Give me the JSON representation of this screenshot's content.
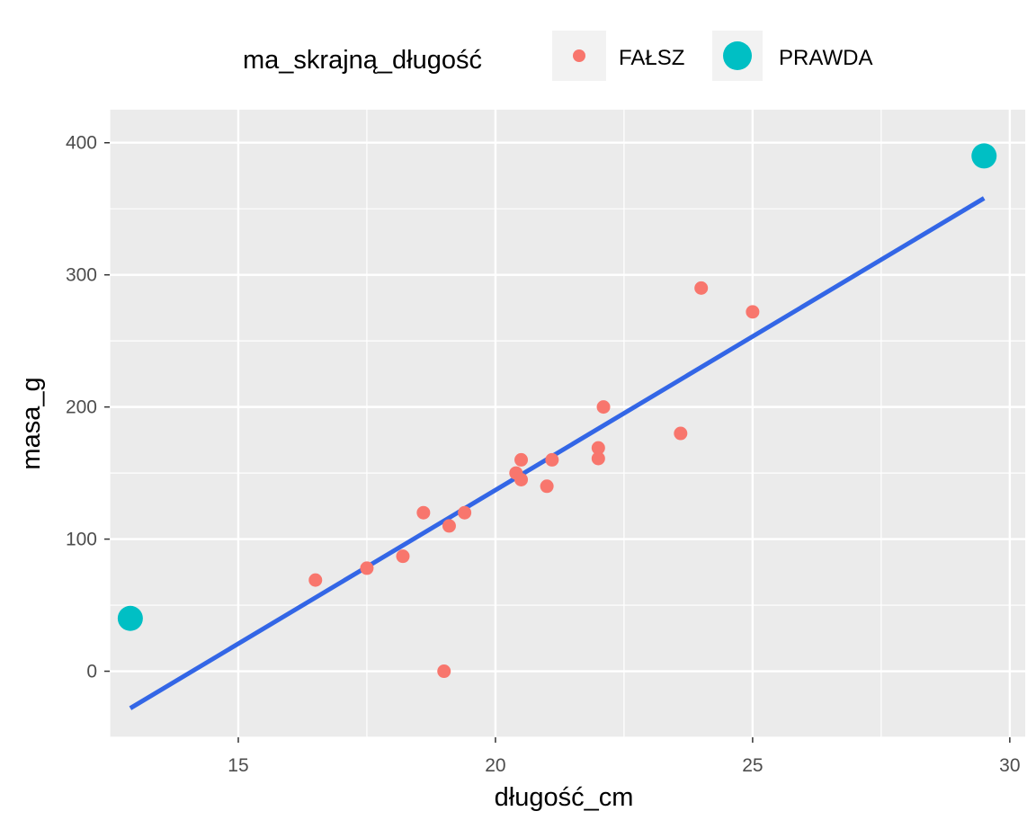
{
  "chart_data": {
    "type": "scatter",
    "xlabel": "długość_cm",
    "ylabel": "masa_g",
    "xlim": [
      12.5,
      30.3
    ],
    "ylim": [
      -50,
      425
    ],
    "x_ticks": [
      15,
      20,
      25,
      30
    ],
    "y_ticks": [
      0,
      100,
      200,
      300,
      400
    ],
    "x_tick_labels": [
      "15",
      "20",
      "25",
      "30"
    ],
    "y_tick_labels": [
      "0",
      "100",
      "200",
      "300",
      "400"
    ],
    "grid": true,
    "legend": {
      "title": "ma_skrajną_długość",
      "position": "top",
      "entries": [
        {
          "label": "FAŁSZ",
          "color": "#f8766d"
        },
        {
          "label": "PRAWDA",
          "color": "#00bfc4"
        }
      ]
    },
    "series": [
      {
        "name": "FAŁSZ",
        "color": "#f8766d",
        "points": [
          {
            "x": 16.5,
            "y": 69
          },
          {
            "x": 17.5,
            "y": 78
          },
          {
            "x": 18.2,
            "y": 87
          },
          {
            "x": 18.6,
            "y": 120
          },
          {
            "x": 19.0,
            "y": 0
          },
          {
            "x": 19.1,
            "y": 110
          },
          {
            "x": 19.4,
            "y": 120
          },
          {
            "x": 20.4,
            "y": 150
          },
          {
            "x": 20.5,
            "y": 145
          },
          {
            "x": 20.5,
            "y": 160
          },
          {
            "x": 21.0,
            "y": 140
          },
          {
            "x": 21.1,
            "y": 160
          },
          {
            "x": 22.0,
            "y": 169
          },
          {
            "x": 22.0,
            "y": 161
          },
          {
            "x": 22.1,
            "y": 200
          },
          {
            "x": 23.6,
            "y": 180
          },
          {
            "x": 24.0,
            "y": 290
          },
          {
            "x": 25.0,
            "y": 272
          }
        ]
      },
      {
        "name": "PRAWDA",
        "color": "#00bfc4",
        "points": [
          {
            "x": 12.9,
            "y": 40
          },
          {
            "x": 29.5,
            "y": 390
          }
        ]
      }
    ],
    "trend_line": {
      "color": "#3366e6",
      "points": [
        {
          "x": 12.9,
          "y": -28
        },
        {
          "x": 29.5,
          "y": 358
        }
      ]
    },
    "colors": {
      "panel_background": "#ebebeb",
      "grid": "#ffffff",
      "legend_key_background": "#f2f2f2"
    }
  }
}
